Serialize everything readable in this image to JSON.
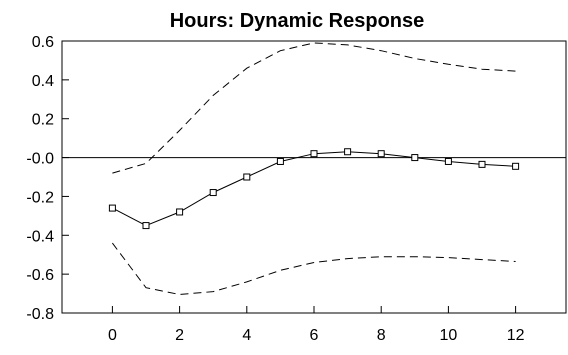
{
  "chart_data": {
    "type": "line",
    "title": "Hours: Dynamic Response",
    "xlabel": "",
    "ylabel": "",
    "x": [
      0,
      1,
      2,
      3,
      4,
      5,
      6,
      7,
      8,
      9,
      10,
      11,
      12
    ],
    "xlim": [
      -1.5,
      13.5
    ],
    "ylim": [
      -0.8,
      0.6
    ],
    "xticks": [
      0,
      2,
      4,
      6,
      8,
      10,
      12
    ],
    "xtick_labels": [
      "0",
      "2",
      "4",
      "6",
      "8",
      "10",
      "12"
    ],
    "yticks": [
      0.6,
      0.4,
      0.2,
      0.0,
      -0.2,
      -0.4,
      -0.6,
      -0.8
    ],
    "ytick_labels": [
      "0.6",
      "0.4",
      "0.2",
      "-0.0",
      "-0.2",
      "-0.4",
      "-0.6",
      "-0.8"
    ],
    "zero_line": true,
    "grid": false,
    "legend": "none",
    "series": [
      {
        "role": "response",
        "style": "solid",
        "marker": "square",
        "values": [
          -0.26,
          -0.35,
          -0.28,
          -0.18,
          -0.1,
          -0.02,
          0.02,
          0.03,
          0.02,
          0.0,
          -0.02,
          -0.035,
          -0.045
        ]
      },
      {
        "role": "upper-band",
        "style": "dashed",
        "marker": "none",
        "values": [
          -0.08,
          -0.03,
          0.14,
          0.32,
          0.46,
          0.55,
          0.59,
          0.58,
          0.55,
          0.51,
          0.48,
          0.455,
          0.445
        ]
      },
      {
        "role": "lower-band",
        "style": "dashed",
        "marker": "none",
        "values": [
          -0.44,
          -0.67,
          -0.705,
          -0.69,
          -0.64,
          -0.58,
          -0.54,
          -0.52,
          -0.51,
          -0.51,
          -0.515,
          -0.525,
          -0.535
        ]
      }
    ],
    "colors": {
      "line": "#000000",
      "axis": "#000000",
      "background": "#ffffff"
    }
  }
}
